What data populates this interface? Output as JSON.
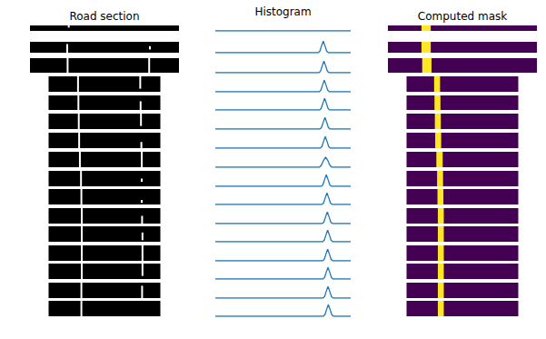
{
  "chart_data": [
    {
      "type": "segments",
      "title": "Road section",
      "colors": [
        "#000000",
        "#ffffff"
      ],
      "ylim": [
        0,
        10
      ],
      "tick_labels": false,
      "strips": [
        {
          "xlim": [
            0,
            400
          ],
          "segments": [
            [
              104,
              6,
              10
            ]
          ]
        },
        {
          "xlim": [
            0,
            400
          ],
          "segments": [
            [
              100,
              0,
              8
            ],
            [
              322,
              3,
              6
            ]
          ]
        },
        {
          "xlim": [
            0,
            400
          ],
          "segments": [
            [
              101,
              0,
              10
            ],
            [
              320,
              0,
              10
            ]
          ]
        },
        {
          "xlim": [
            50,
            350
          ],
          "segments": [
            [
              129,
              0,
              10
            ],
            [
              296,
              2,
              10
            ]
          ]
        },
        {
          "xlim": [
            50,
            350
          ],
          "segments": [
            [
              130,
              0,
              10
            ],
            [
              297,
              0,
              6
            ]
          ]
        },
        {
          "xlim": [
            50,
            350
          ],
          "segments": [
            [
              131,
              0,
              10
            ],
            [
              298,
              2,
              10
            ]
          ]
        },
        {
          "xlim": [
            50,
            350
          ],
          "segments": [
            [
              132,
              0,
              10
            ],
            [
              299,
              0,
              4
            ]
          ]
        },
        {
          "xlim": [
            50,
            350
          ],
          "segments": [
            [
              134,
              0,
              10
            ],
            [
              300,
              0,
              10
            ]
          ]
        },
        {
          "xlim": [
            50,
            350
          ],
          "segments": [
            [
              137,
              0,
              10
            ],
            [
              300,
              3,
              5
            ]
          ]
        },
        {
          "xlim": [
            50,
            350
          ],
          "segments": [
            [
              138,
              0,
              10
            ],
            [
              300,
              1,
              3
            ]
          ]
        },
        {
          "xlim": [
            50,
            350
          ],
          "segments": [
            [
              139,
              0,
              10
            ],
            [
              301,
              0,
              5
            ]
          ]
        },
        {
          "xlim": [
            50,
            350
          ],
          "segments": [
            [
              139,
              0,
              10
            ],
            [
              302,
              1,
              6
            ]
          ]
        },
        {
          "xlim": [
            50,
            350
          ],
          "segments": [
            [
              139,
              0,
              10
            ],
            [
              302,
              0,
              10
            ]
          ]
        },
        {
          "xlim": [
            50,
            350
          ],
          "segments": [
            [
              139,
              0,
              10
            ],
            [
              302,
              2,
              10
            ]
          ]
        },
        {
          "xlim": [
            50,
            350
          ],
          "segments": [
            [
              138,
              0,
              10
            ],
            [
              301,
              0,
              8
            ]
          ]
        },
        {
          "xlim": [
            50,
            350
          ],
          "segments": [
            [
              138,
              0,
              10
            ]
          ]
        }
      ]
    },
    {
      "type": "line",
      "title": "Histogram",
      "color": "#1f77b4",
      "xlim": [
        0,
        400
      ],
      "ylim": [
        0,
        20
      ],
      "tick_labels": false,
      "series": [
        {
          "x": [
            0,
            400
          ],
          "values": [
            0,
            0
          ]
        },
        {
          "x": [
            0,
            304,
            309,
            314,
            319,
            324,
            329,
            334,
            400
          ],
          "values": [
            0,
            0,
            2,
            9,
            15,
            9,
            2,
            0,
            0
          ]
        },
        {
          "x": [
            0,
            306,
            311,
            316,
            321,
            326,
            331,
            336,
            400
          ],
          "values": [
            0,
            0,
            2,
            9,
            15,
            9,
            2,
            0,
            0
          ]
        },
        {
          "x": [
            0,
            307,
            312,
            317,
            322,
            327,
            332,
            337,
            400
          ],
          "values": [
            0,
            0,
            2,
            9,
            15,
            9,
            2,
            0,
            0
          ]
        },
        {
          "x": [
            0,
            308,
            313,
            318,
            323,
            328,
            333,
            338,
            400
          ],
          "values": [
            0,
            0,
            2,
            9,
            15,
            9,
            2,
            0,
            0
          ]
        },
        {
          "x": [
            0,
            309,
            314,
            319,
            324,
            329,
            334,
            339,
            400
          ],
          "values": [
            0,
            0,
            2,
            9,
            15,
            9,
            2,
            0,
            0
          ]
        },
        {
          "x": [
            0,
            310,
            315,
            320,
            325,
            330,
            335,
            340,
            400
          ],
          "values": [
            0,
            0,
            2,
            9,
            15,
            9,
            2,
            0,
            0
          ]
        },
        {
          "x": [
            0,
            308,
            314,
            320,
            326,
            332,
            338,
            344,
            400
          ],
          "values": [
            0,
            0,
            3,
            9,
            13,
            9,
            3,
            0,
            0
          ]
        },
        {
          "x": [
            0,
            313,
            318,
            323,
            328,
            333,
            338,
            343,
            400
          ],
          "values": [
            0,
            0,
            2,
            9,
            15,
            9,
            2,
            0,
            0
          ]
        },
        {
          "x": [
            0,
            315,
            320,
            325,
            330,
            335,
            340,
            345,
            400
          ],
          "values": [
            0,
            0,
            2,
            9,
            15,
            9,
            2,
            0,
            0
          ]
        },
        {
          "x": [
            0,
            316,
            321,
            326,
            331,
            336,
            341,
            346,
            400
          ],
          "values": [
            0,
            0,
            2,
            9,
            15,
            9,
            2,
            0,
            0
          ]
        },
        {
          "x": [
            0,
            317,
            322,
            327,
            332,
            337,
            342,
            347,
            400
          ],
          "values": [
            0,
            0,
            2,
            9,
            15,
            9,
            2,
            0,
            0
          ]
        },
        {
          "x": [
            0,
            317,
            322,
            327,
            332,
            337,
            342,
            347,
            400
          ],
          "values": [
            0,
            0,
            2,
            9,
            15,
            9,
            2,
            0,
            0
          ]
        },
        {
          "x": [
            0,
            318,
            323,
            328,
            333,
            338,
            343,
            348,
            400
          ],
          "values": [
            0,
            0,
            2,
            9,
            15,
            9,
            2,
            0,
            0
          ]
        },
        {
          "x": [
            0,
            318,
            323,
            328,
            333,
            338,
            343,
            348,
            400
          ],
          "values": [
            0,
            0,
            2,
            9,
            15,
            9,
            2,
            0,
            0
          ]
        },
        {
          "x": [
            0,
            319,
            324,
            329,
            334,
            339,
            344,
            349,
            400
          ],
          "values": [
            0,
            0,
            2,
            9,
            15,
            9,
            2,
            0,
            0
          ]
        }
      ]
    },
    {
      "type": "mask",
      "title": "Computed mask",
      "colors": [
        "#440154",
        "#fde725"
      ],
      "ylim": [
        0,
        1
      ],
      "tick_labels": false,
      "strips": [
        {
          "xlim": [
            0,
            400
          ],
          "band": [
            90,
            115
          ]
        },
        {
          "xlim": [
            0,
            400
          ],
          "band": [
            90,
            115
          ]
        },
        {
          "xlim": [
            0,
            400
          ],
          "band": [
            92,
            117
          ]
        },
        {
          "xlim": [
            50,
            350
          ],
          "band": [
            124,
            140
          ]
        },
        {
          "xlim": [
            50,
            350
          ],
          "band": [
            125,
            141
          ]
        },
        {
          "xlim": [
            50,
            350
          ],
          "band": [
            126,
            142
          ]
        },
        {
          "xlim": [
            50,
            350
          ],
          "band": [
            127,
            143
          ]
        },
        {
          "xlim": [
            50,
            350
          ],
          "band": [
            130,
            147
          ]
        },
        {
          "xlim": [
            50,
            350
          ],
          "band": [
            132,
            148
          ]
        },
        {
          "xlim": [
            50,
            350
          ],
          "band": [
            133,
            149
          ]
        },
        {
          "xlim": [
            50,
            350
          ],
          "band": [
            134,
            150
          ]
        },
        {
          "xlim": [
            50,
            350
          ],
          "band": [
            134,
            150
          ]
        },
        {
          "xlim": [
            50,
            350
          ],
          "band": [
            134,
            150
          ]
        },
        {
          "xlim": [
            50,
            350
          ],
          "band": [
            134,
            150
          ]
        },
        {
          "xlim": [
            50,
            350
          ],
          "band": [
            134,
            150
          ]
        },
        {
          "xlim": [
            50,
            350
          ],
          "band": [
            134,
            150
          ]
        }
      ]
    }
  ]
}
